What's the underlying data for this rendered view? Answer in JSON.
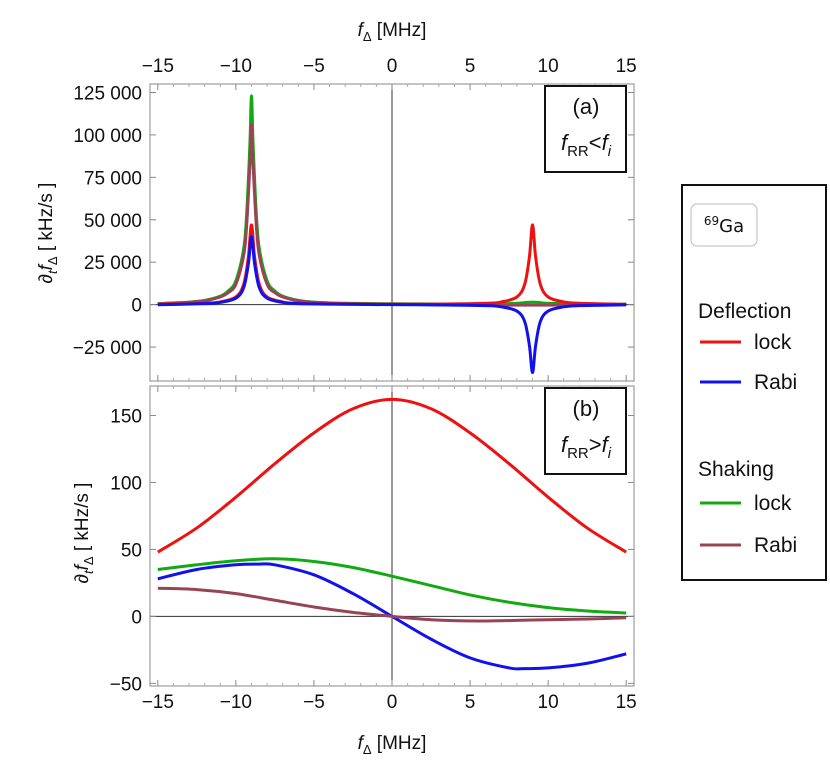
{
  "colors": {
    "deflection_lock": "#ee1111",
    "deflection_rabi": "#1111ee",
    "shaking_lock": "#11aa11",
    "shaking_rabi": "#994455"
  },
  "axes": {
    "top_title_var": "f",
    "top_title_sub": "Δ",
    "top_title_unit": " [MHz]",
    "bottom_title_var": "f",
    "bottom_title_sub": "Δ",
    "bottom_title_unit": " [MHz]",
    "y_title_prefix": "∂",
    "y_title_sub1": "t",
    "y_title_var": "f",
    "y_title_sub2": "Δ",
    "y_title_unit": "  [ kHz/s ]"
  },
  "panel_a": {
    "tag": "(a)",
    "cond_var": "f",
    "cond_sub": "RR",
    "cond_op": "<",
    "cond_rhs": "f",
    "cond_rhs_sub": "i"
  },
  "panel_b": {
    "tag": "(b)",
    "cond_var": "f",
    "cond_sub": "RR",
    "cond_op": ">",
    "cond_rhs": "f",
    "cond_rhs_sub": "i"
  },
  "legend": {
    "isotope_mass": "69",
    "isotope_symbol": "Ga",
    "group1": "Deflection",
    "group1_lock": "lock",
    "group1_rabi": "Rabi",
    "group2": "Shaking",
    "group2_lock": "lock",
    "group2_rabi": "Rabi"
  },
  "chart_data": [
    {
      "type": "line",
      "panel": "(a)",
      "xlim": [
        -15.5,
        15.5
      ],
      "ylim": [
        -45000,
        130000
      ],
      "xticks": [
        -15,
        -10,
        -5,
        0,
        5,
        10,
        15
      ],
      "xtick_labels": [
        "−15",
        "−10",
        "−5",
        "0",
        "5",
        "10",
        "15"
      ],
      "yticks": [
        -25000,
        0,
        25000,
        50000,
        75000,
        100000,
        125000
      ],
      "ytick_labels": [
        "−25 000",
        "0",
        "25 000",
        "50 000",
        "75 000",
        "100 000",
        "125 000"
      ],
      "series": [
        {
          "key": "shaking_lock",
          "x": [
            -15,
            -13,
            -12,
            -11,
            -10.5,
            -10,
            -9.5,
            -9.3,
            -9.1,
            -9,
            -8.9,
            -8.7,
            -8.5,
            -8,
            -7.5,
            -7,
            -6,
            -5,
            -3,
            0,
            3,
            5,
            7,
            8,
            8.5,
            9,
            9.5,
            10,
            12,
            15
          ],
          "y": [
            600,
            1500,
            2500,
            5000,
            8000,
            14000,
            33000,
            55000,
            95000,
            123000,
            95000,
            55000,
            33000,
            14000,
            8000,
            5000,
            2500,
            1500,
            800,
            500,
            400,
            400,
            500,
            800,
            1200,
            1500,
            1200,
            800,
            400,
            200
          ]
        },
        {
          "key": "shaking_rabi",
          "x": [
            -15,
            -13,
            -12,
            -11,
            -10.5,
            -10,
            -9.5,
            -9.3,
            -9.1,
            -9,
            -8.9,
            -8.7,
            -8.5,
            -8,
            -7.5,
            -7,
            -6,
            -5,
            -3,
            0,
            3,
            5,
            8,
            9,
            10,
            12,
            15
          ],
          "y": [
            500,
            1300,
            2200,
            4500,
            7000,
            12000,
            29000,
            48000,
            83000,
            106000,
            83000,
            48000,
            29000,
            12000,
            7000,
            4500,
            2200,
            1300,
            600,
            200,
            0,
            -200,
            -300,
            -300,
            -300,
            -200,
            0
          ]
        },
        {
          "key": "deflection_lock",
          "x": [
            -15,
            -12,
            -11,
            -10,
            -9.5,
            -9.2,
            -9,
            -8.8,
            -8.5,
            -8,
            -7,
            -6,
            -3,
            0,
            3,
            6,
            7,
            8,
            8.5,
            8.8,
            9,
            9.2,
            9.5,
            10,
            11,
            12,
            15
          ],
          "y": [
            200,
            800,
            1600,
            4500,
            12000,
            28000,
            47000,
            28000,
            12000,
            4500,
            1600,
            800,
            300,
            200,
            300,
            800,
            1600,
            4500,
            12000,
            28000,
            47000,
            28000,
            12000,
            4500,
            1600,
            800,
            200
          ]
        },
        {
          "key": "deflection_rabi",
          "x": [
            -15,
            -12,
            -11,
            -10,
            -9.5,
            -9.2,
            -9,
            -8.8,
            -8.5,
            -8,
            -7,
            -6,
            -3,
            0,
            3,
            6,
            7,
            8,
            8.5,
            8.8,
            9,
            9.2,
            9.5,
            10,
            11,
            12,
            15
          ],
          "y": [
            -100,
            600,
            1300,
            3800,
            10000,
            24000,
            40000,
            24000,
            10000,
            3800,
            1300,
            600,
            200,
            0,
            -200,
            -600,
            -1300,
            -3800,
            -10000,
            -24000,
            -40000,
            -24000,
            -10000,
            -3800,
            -1300,
            -600,
            -100
          ]
        }
      ]
    },
    {
      "type": "line",
      "panel": "(b)",
      "xlim": [
        -15.5,
        15.5
      ],
      "ylim": [
        -52,
        172
      ],
      "xticks": [
        -15,
        -10,
        -5,
        0,
        5,
        10,
        15
      ],
      "xtick_labels": [
        "−15",
        "−10",
        "−5",
        "0",
        "5",
        "10",
        "15"
      ],
      "yticks": [
        -50,
        0,
        50,
        100,
        150
      ],
      "ytick_labels": [
        "−50",
        "0",
        "50",
        "100",
        "150"
      ],
      "series": [
        {
          "key": "deflection_lock",
          "x": [
            -15,
            -12.5,
            -10,
            -7.5,
            -5,
            -2.5,
            0,
            2.5,
            5,
            7.5,
            10,
            12.5,
            15
          ],
          "y": [
            48,
            66,
            89,
            114,
            137,
            155,
            162,
            155,
            137,
            114,
            89,
            66,
            48
          ]
        },
        {
          "key": "shaking_lock",
          "x": [
            -15,
            -12.5,
            -10,
            -7.5,
            -5,
            -2.5,
            0,
            2.5,
            5,
            7.5,
            10,
            12.5,
            15
          ],
          "y": [
            35,
            38.5,
            41.5,
            43,
            41,
            36.5,
            30,
            23,
            16,
            10.5,
            6.5,
            4,
            2.5
          ]
        },
        {
          "key": "deflection_rabi",
          "x": [
            -15,
            -12.5,
            -10,
            -8.5,
            -7.5,
            -5,
            -2.5,
            0,
            2.5,
            5,
            7.5,
            8.5,
            10,
            12.5,
            15
          ],
          "y": [
            28,
            35,
            38.5,
            39,
            38.5,
            31,
            17,
            0,
            -17,
            -31,
            -38.5,
            -39,
            -38.5,
            -35,
            -28
          ]
        },
        {
          "key": "shaking_rabi",
          "x": [
            -15,
            -12.5,
            -10,
            -7.5,
            -5,
            -2.5,
            0,
            2.5,
            5.5,
            8,
            10,
            12.5,
            15
          ],
          "y": [
            21,
            20,
            17,
            12,
            7,
            3,
            0,
            -2.5,
            -3.5,
            -3,
            -2.5,
            -2,
            -1
          ]
        }
      ]
    }
  ]
}
